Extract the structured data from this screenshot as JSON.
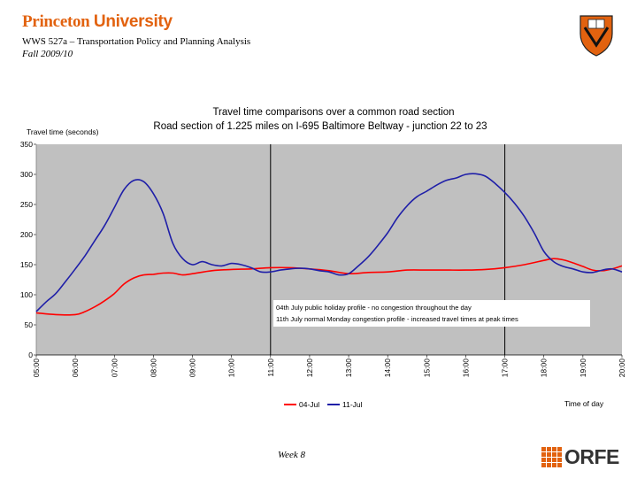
{
  "header": {
    "institution_part1": "Princeton",
    "institution_part2": "University",
    "course": "WWS 527a – Transportation Policy and Planning Analysis",
    "term": "Fall 2009/10"
  },
  "footer": {
    "week": "Week 8",
    "logo_text": "ORFE"
  },
  "colors": {
    "accent": "#e2620f",
    "plot_bg": "#c0c0c0",
    "series_1": "#ff0000",
    "series_2": "#1f1fa8"
  },
  "chart_data": {
    "type": "line",
    "title": "Travel time comparisons over a common road section",
    "subtitle": "Road section of 1.225 miles on I-695 Baltimore Beltway - junction 22 to 23",
    "ylabel": "Travel time (seconds)",
    "xlabel": "Time of day",
    "ylim": [
      0,
      350
    ],
    "yticks": [
      0,
      50,
      100,
      150,
      200,
      250,
      300,
      350
    ],
    "x_tick_labels": [
      "05:00",
      "06:00",
      "07:00",
      "08:00",
      "09:00",
      "10:00",
      "11:00",
      "12:00",
      "13:00",
      "14:00",
      "15:00",
      "16:00",
      "17:00",
      "18:00",
      "19:00",
      "20:00"
    ],
    "grid": false,
    "legend_placement": "bottom",
    "vertical_markers": [
      "11:00",
      "17:00"
    ],
    "annotations": [
      "04th July public holiday profile - no congestion throughout the day",
      "11th July normal Monday congestion profile - increased travel times at peak times"
    ],
    "series": [
      {
        "name": "04-Jul",
        "color": "#ff0000",
        "x": [
          "05:00",
          "05:30",
          "06:00",
          "06:15",
          "06:30",
          "06:45",
          "07:00",
          "07:15",
          "07:30",
          "07:45",
          "08:00",
          "08:15",
          "08:30",
          "08:45",
          "09:00",
          "09:30",
          "10:00",
          "10:30",
          "11:00",
          "11:30",
          "12:00",
          "12:30",
          "13:00",
          "13:30",
          "14:00",
          "14:30",
          "15:00",
          "15:30",
          "16:00",
          "16:30",
          "17:00",
          "17:30",
          "18:00",
          "18:15",
          "18:30",
          "18:45",
          "19:00",
          "19:15",
          "19:30",
          "19:45",
          "20:00"
        ],
        "values": [
          70,
          67,
          67,
          72,
          80,
          90,
          102,
          118,
          128,
          133,
          134,
          136,
          136,
          133,
          135,
          140,
          142,
          143,
          145,
          145,
          143,
          140,
          135,
          137,
          138,
          141,
          141,
          141,
          141,
          142,
          145,
          150,
          157,
          160,
          158,
          153,
          147,
          141,
          140,
          143,
          148
        ]
      },
      {
        "name": "11-Jul",
        "color": "#1f1fa8",
        "x": [
          "05:00",
          "05:15",
          "05:30",
          "05:45",
          "06:00",
          "06:15",
          "06:30",
          "06:45",
          "07:00",
          "07:15",
          "07:30",
          "07:45",
          "08:00",
          "08:15",
          "08:30",
          "08:45",
          "09:00",
          "09:15",
          "09:30",
          "09:45",
          "10:00",
          "10:15",
          "10:30",
          "10:45",
          "11:00",
          "11:15",
          "11:30",
          "11:45",
          "12:00",
          "12:15",
          "12:30",
          "12:45",
          "13:00",
          "13:15",
          "13:30",
          "13:45",
          "14:00",
          "14:15",
          "14:30",
          "14:45",
          "15:00",
          "15:15",
          "15:30",
          "15:45",
          "16:00",
          "16:15",
          "16:30",
          "16:45",
          "17:00",
          "17:15",
          "17:30",
          "17:45",
          "18:00",
          "18:15",
          "18:30",
          "18:45",
          "19:00",
          "19:15",
          "19:30",
          "19:45",
          "20:00"
        ],
        "values": [
          72,
          88,
          102,
          122,
          143,
          165,
          190,
          215,
          245,
          275,
          290,
          288,
          268,
          235,
          185,
          160,
          150,
          155,
          150,
          148,
          152,
          150,
          145,
          138,
          138,
          141,
          143,
          144,
          143,
          140,
          138,
          133,
          135,
          148,
          163,
          182,
          203,
          228,
          248,
          263,
          272,
          282,
          290,
          294,
          300,
          301,
          297,
          285,
          270,
          252,
          230,
          203,
          172,
          155,
          147,
          143,
          138,
          137,
          141,
          143,
          138
        ]
      }
    ]
  }
}
